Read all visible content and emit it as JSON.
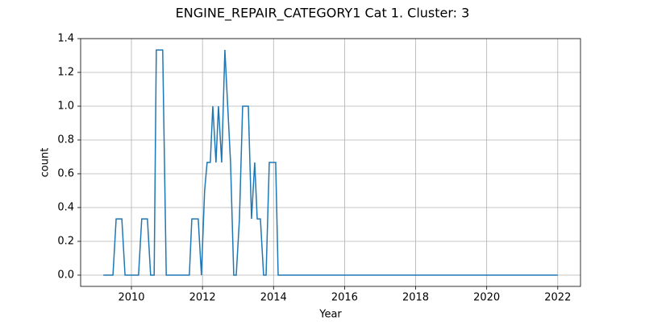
{
  "chart_data": {
    "type": "line",
    "title": "ENGINE_REPAIR_CATEGORY1 Cat 1. Cluster: 3",
    "xlabel": "Year",
    "ylabel": "count",
    "x": [
      2009.21,
      2009.48,
      2009.57,
      2009.73,
      2009.82,
      2010.2,
      2010.29,
      2010.45,
      2010.54,
      2010.64,
      2010.7,
      2010.88,
      2010.98,
      2011.63,
      2011.7,
      2011.88,
      2011.97,
      2012.06,
      2012.13,
      2012.22,
      2012.29,
      2012.38,
      2012.45,
      2012.54,
      2012.63,
      2012.79,
      2012.88,
      2012.95,
      2013.04,
      2013.13,
      2013.29,
      2013.38,
      2013.47,
      2013.54,
      2013.63,
      2013.72,
      2013.79,
      2013.88,
      2014.06,
      2014.13,
      2022.0
    ],
    "series": [
      {
        "name": "count",
        "color": "#1f77b4",
        "values": [
          0,
          0,
          0.333,
          0.333,
          0,
          0,
          0.333,
          0.333,
          0,
          0,
          1.333,
          1.333,
          0,
          0,
          0.333,
          0.333,
          0,
          0.5,
          0.667,
          0.667,
          1.0,
          0.667,
          1.0,
          0.667,
          1.333,
          0.667,
          0,
          0,
          0.333,
          1.0,
          1.0,
          0.333,
          0.667,
          0.333,
          0.333,
          0,
          0,
          0.667,
          0.667,
          0,
          0
        ]
      }
    ],
    "xlim": [
      2008.57,
      2022.64
    ],
    "xticks": [
      2010,
      2012,
      2014,
      2016,
      2018,
      2020,
      2022
    ],
    "ylim": [
      -0.0667,
      1.4
    ],
    "yticks": [
      {
        "value": 0,
        "label": "0.0"
      },
      {
        "value": 0.2,
        "label": "0.2"
      },
      {
        "value": 0.4,
        "label": "0.4"
      },
      {
        "value": 0.6,
        "label": "0.6"
      },
      {
        "value": 0.8,
        "label": "0.8"
      },
      {
        "value": 1.0,
        "label": "1.0"
      },
      {
        "value": 1.2,
        "label": "1.2"
      },
      {
        "value": 1.4,
        "label": "1.4"
      }
    ],
    "grid": true
  }
}
